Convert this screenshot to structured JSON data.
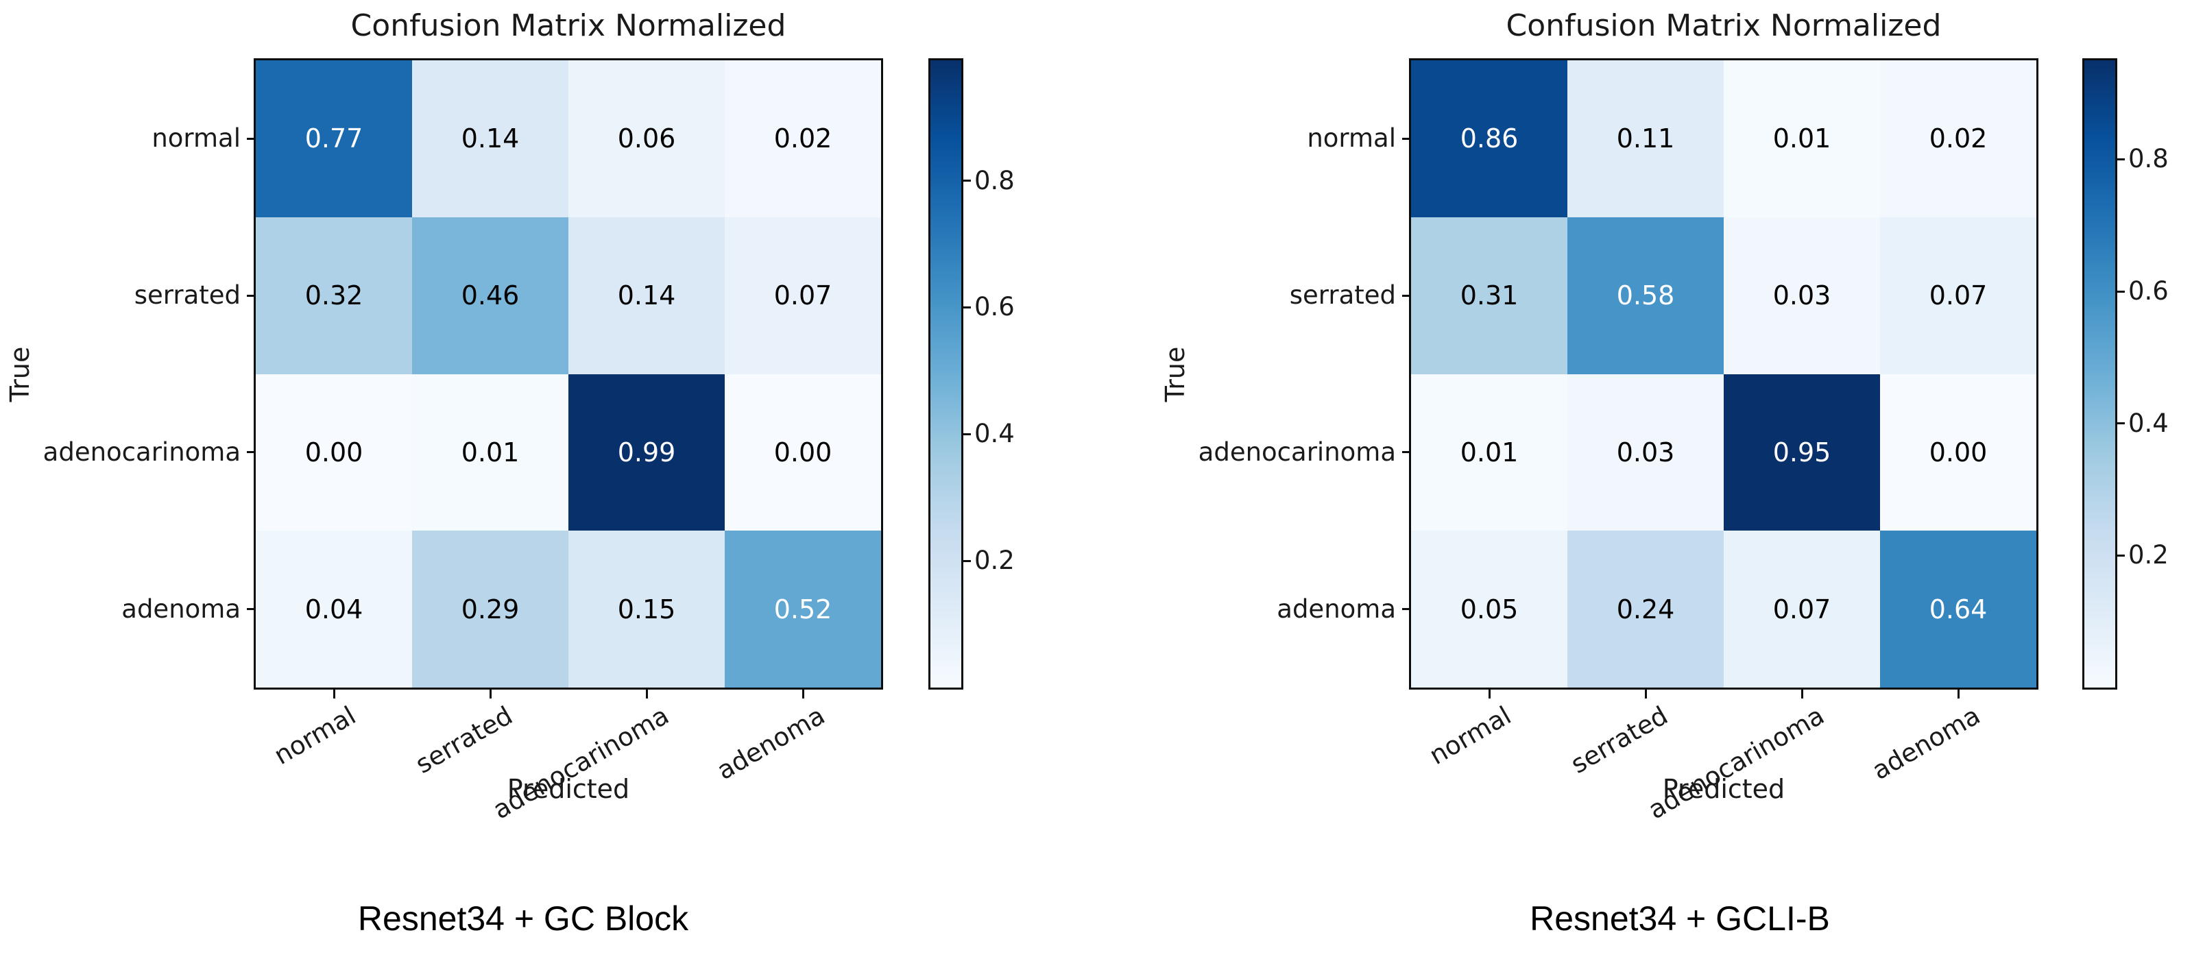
{
  "chart_data": [
    {
      "type": "heatmap",
      "title": "Confusion Matrix Normalized",
      "xlabel": "Predicted",
      "ylabel": "True",
      "caption": "Resnet34 + GC Block",
      "x_categories": [
        "normal",
        "serrated",
        "adenocarinoma",
        "adenoma"
      ],
      "y_categories": [
        "normal",
        "serrated",
        "adenocarinoma",
        "adenoma"
      ],
      "values": [
        [
          0.77,
          0.14,
          0.06,
          0.02
        ],
        [
          0.32,
          0.46,
          0.14,
          0.07
        ],
        [
          0.0,
          0.01,
          0.99,
          0.0
        ],
        [
          0.04,
          0.29,
          0.15,
          0.52
        ]
      ],
      "value_decimals": 2,
      "vmin": 0.0,
      "vmax": 0.99,
      "colormap": "Blues",
      "colorbar_ticks": [
        0.2,
        0.4,
        0.6,
        0.8
      ],
      "tick_rotation_deg": 30,
      "grid": false,
      "legend_position": "right-colorbar"
    },
    {
      "type": "heatmap",
      "title": "Confusion Matrix Normalized",
      "xlabel": "Predicted",
      "ylabel": "True",
      "caption": "Resnet34 + GCLI-B",
      "x_categories": [
        "normal",
        "serrated",
        "adenocarinoma",
        "adenoma"
      ],
      "y_categories": [
        "normal",
        "serrated",
        "adenocarinoma",
        "adenoma"
      ],
      "values": [
        [
          0.86,
          0.11,
          0.01,
          0.02
        ],
        [
          0.31,
          0.58,
          0.03,
          0.07
        ],
        [
          0.01,
          0.03,
          0.95,
          0.0
        ],
        [
          0.05,
          0.24,
          0.07,
          0.64
        ]
      ],
      "value_decimals": 2,
      "vmin": 0.0,
      "vmax": 0.95,
      "colormap": "Blues",
      "colorbar_ticks": [
        0.2,
        0.4,
        0.6,
        0.8
      ],
      "tick_rotation_deg": 30,
      "grid": false,
      "legend_position": "right-colorbar"
    }
  ],
  "colors": {
    "background": "#ffffff",
    "axis": "#0d0d0d",
    "text": "#1a1a1a",
    "cell_text_dark": "#000000",
    "cell_text_light": "#ffffff",
    "colormap_min": "#f7fbff",
    "colormap_max": "#08306b"
  }
}
